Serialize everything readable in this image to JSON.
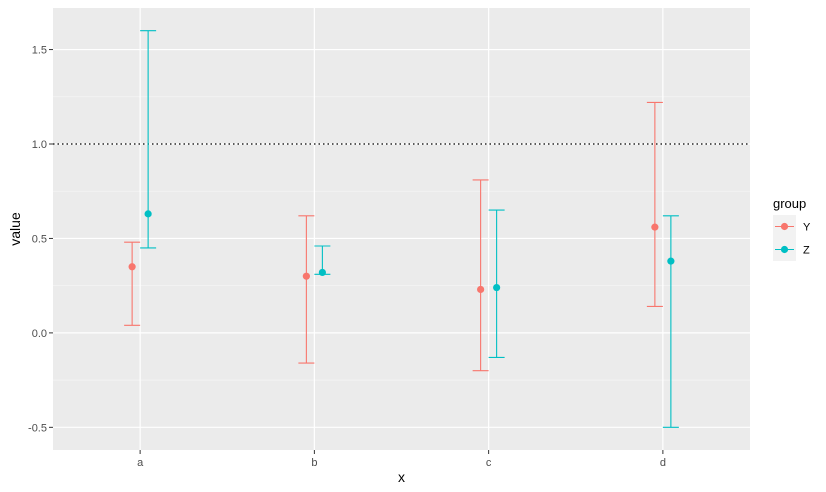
{
  "chart_data": {
    "type": "scatter",
    "title": "",
    "xlabel": "x",
    "ylabel": "value",
    "categories": [
      "a",
      "b",
      "c",
      "d"
    ],
    "ylim": [
      -0.62,
      1.72
    ],
    "yticks": [
      -0.5,
      0.0,
      0.5,
      1.0,
      1.5
    ],
    "ytick_labels": [
      "-0.5",
      "0.0",
      "0.5",
      "1.0",
      "1.5"
    ],
    "reference_line": {
      "y": 1.0,
      "style": "dotted",
      "color": "#000000"
    },
    "grid": true,
    "panel_background": "#ebebeb",
    "legend": {
      "title": "group",
      "position": "right"
    },
    "series": [
      {
        "name": "Y",
        "color": "#F8766D",
        "points": [
          {
            "x": "a",
            "y": 0.35,
            "lower": 0.04,
            "upper": 0.48
          },
          {
            "x": "b",
            "y": 0.3,
            "lower": -0.16,
            "upper": 0.62
          },
          {
            "x": "c",
            "y": 0.23,
            "lower": -0.2,
            "upper": 0.81
          },
          {
            "x": "d",
            "y": 0.56,
            "lower": 0.14,
            "upper": 1.22
          }
        ]
      },
      {
        "name": "Z",
        "color": "#00BFC4",
        "points": [
          {
            "x": "a",
            "y": 0.63,
            "lower": 0.45,
            "upper": 1.6
          },
          {
            "x": "b",
            "y": 0.32,
            "lower": 0.31,
            "upper": 0.46
          },
          {
            "x": "c",
            "y": 0.24,
            "lower": -0.13,
            "upper": 0.65
          },
          {
            "x": "d",
            "y": 0.38,
            "lower": -0.5,
            "upper": 0.62
          }
        ]
      }
    ]
  }
}
